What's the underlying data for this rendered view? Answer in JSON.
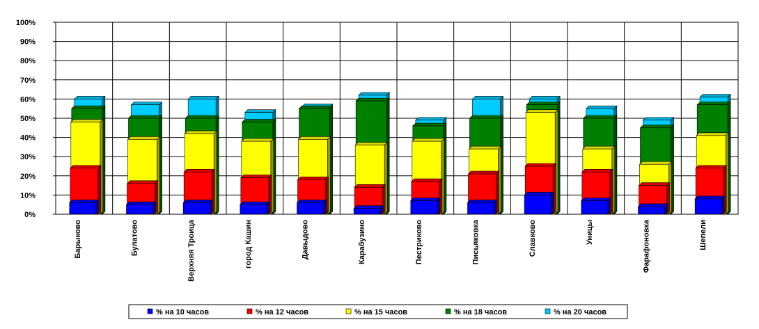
{
  "chart_data": {
    "type": "bar",
    "categories": [
      "Барыково",
      "Булатово",
      "Верхняя Троица",
      "город Кашин",
      "Давыдово",
      "Карабузино",
      "Пестриково",
      "Письяковка",
      "Славково",
      "Уницы",
      "Фарафоновка",
      "Шепели"
    ],
    "series": [
      {
        "name": "% на 10 часов",
        "color": "#0000ff",
        "values": [
          6,
          5,
          6,
          5,
          6,
          3,
          7,
          6,
          10,
          7,
          4,
          8
        ]
      },
      {
        "name": "% на 12 часов",
        "color": "#ff0000",
        "values": [
          24,
          16,
          22,
          19,
          18,
          14,
          17,
          21,
          25,
          22,
          15,
          24
        ]
      },
      {
        "name": "% на 15 часов",
        "color": "#ffff00",
        "values": [
          48,
          39,
          42,
          38,
          39,
          36,
          38,
          34,
          53,
          34,
          26,
          41
        ]
      },
      {
        "name": "% на 18 часов",
        "color": "#008000",
        "values": [
          55,
          50,
          50,
          48,
          55,
          59,
          46,
          50,
          57,
          50,
          45,
          57
        ]
      },
      {
        "name": "% на 20 часов",
        "color": "#00ccff",
        "values": [
          60,
          57,
          60,
          53,
          56,
          62,
          49,
          60,
          60,
          55,
          49,
          61
        ]
      }
    ],
    "y_ticks": [
      "0%",
      "10%",
      "20%",
      "30%",
      "40%",
      "50%",
      "60%",
      "70%",
      "80%",
      "90%",
      "100%"
    ],
    "ylim": [
      0,
      100
    ],
    "grid": true,
    "legend_position": "bottom"
  }
}
